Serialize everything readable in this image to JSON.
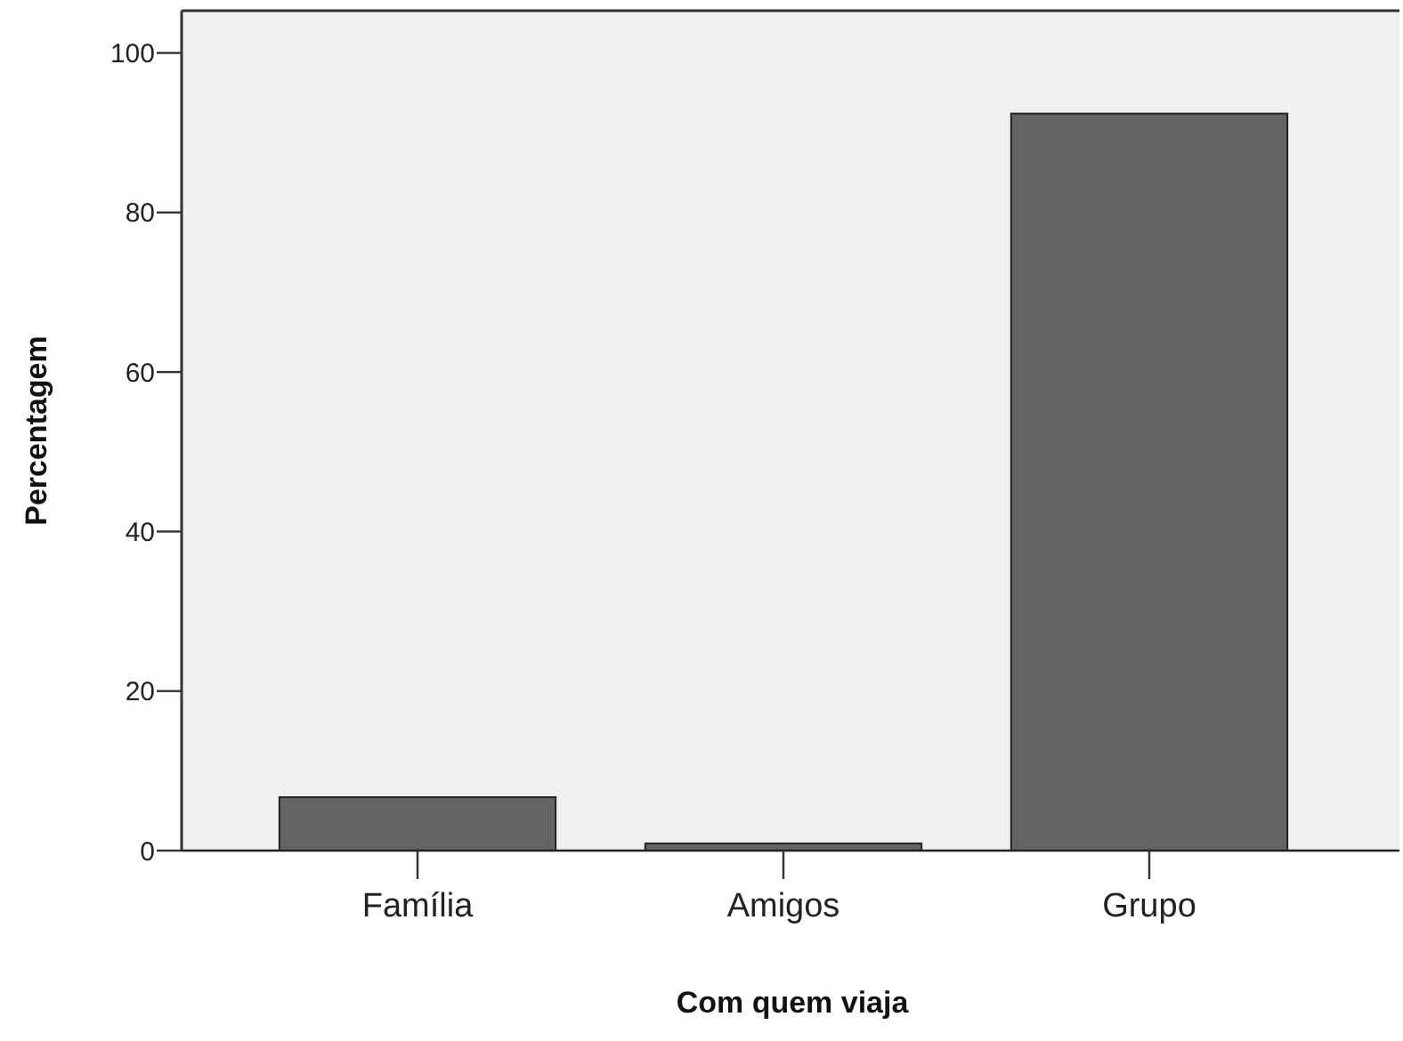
{
  "chart_data": {
    "type": "bar",
    "xlabel": "Com quem viaja",
    "ylabel": "Percentagem",
    "categories": [
      "Família",
      "Amigos",
      "Grupo"
    ],
    "values": [
      6.7,
      0.9,
      92.4
    ],
    "color": "#646464",
    "ylim": [
      0,
      105.3
    ],
    "yticks": [
      0,
      20,
      40,
      60,
      80,
      100
    ],
    "grid": false
  }
}
